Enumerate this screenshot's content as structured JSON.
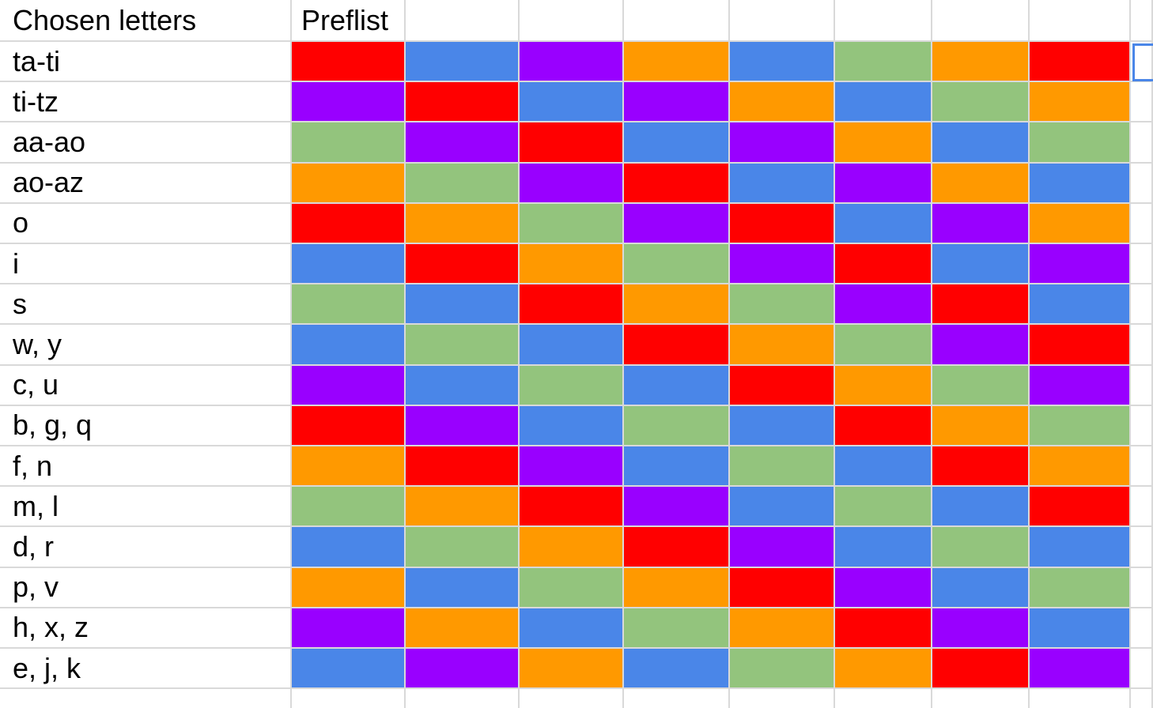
{
  "header": {
    "col_a": "Chosen letters",
    "col_b": "Preflist"
  },
  "colors": {
    "red": "#ff0000",
    "blue": "#4a86e8",
    "purple": "#9900ff",
    "orange": "#ff9900",
    "green": "#93c47d",
    "selection_border": "#4a86e8",
    "grid_line": "#d9d9d9"
  },
  "rows": [
    {
      "label": "ta-ti",
      "colors": [
        "red",
        "blue",
        "purple",
        "orange",
        "blue",
        "green",
        "orange",
        "red"
      ]
    },
    {
      "label": "ti-tz",
      "colors": [
        "purple",
        "red",
        "blue",
        "purple",
        "orange",
        "blue",
        "green",
        "orange"
      ]
    },
    {
      "label": "aa-ao",
      "colors": [
        "green",
        "purple",
        "red",
        "blue",
        "purple",
        "orange",
        "blue",
        "green"
      ]
    },
    {
      "label": "ao-az",
      "colors": [
        "orange",
        "green",
        "purple",
        "red",
        "blue",
        "purple",
        "orange",
        "blue"
      ]
    },
    {
      "label": "o",
      "colors": [
        "red",
        "orange",
        "green",
        "purple",
        "red",
        "blue",
        "purple",
        "orange"
      ]
    },
    {
      "label": "i",
      "colors": [
        "blue",
        "red",
        "orange",
        "green",
        "purple",
        "red",
        "blue",
        "purple"
      ]
    },
    {
      "label": "s",
      "colors": [
        "green",
        "blue",
        "red",
        "orange",
        "green",
        "purple",
        "red",
        "blue"
      ]
    },
    {
      "label": "w, y",
      "colors": [
        "blue",
        "green",
        "blue",
        "red",
        "orange",
        "green",
        "purple",
        "red"
      ]
    },
    {
      "label": "c, u",
      "colors": [
        "purple",
        "blue",
        "green",
        "blue",
        "red",
        "orange",
        "green",
        "purple"
      ]
    },
    {
      "label": "b, g, q",
      "colors": [
        "red",
        "purple",
        "blue",
        "green",
        "blue",
        "red",
        "orange",
        "green"
      ]
    },
    {
      "label": "f, n",
      "colors": [
        "orange",
        "red",
        "purple",
        "blue",
        "green",
        "blue",
        "red",
        "orange"
      ]
    },
    {
      "label": "m, l",
      "colors": [
        "green",
        "orange",
        "red",
        "purple",
        "blue",
        "green",
        "blue",
        "red"
      ]
    },
    {
      "label": "d, r",
      "colors": [
        "blue",
        "green",
        "orange",
        "red",
        "purple",
        "blue",
        "green",
        "blue"
      ]
    },
    {
      "label": "p, v",
      "colors": [
        "orange",
        "blue",
        "green",
        "orange",
        "red",
        "purple",
        "blue",
        "green"
      ]
    },
    {
      "label": "h, x, z",
      "colors": [
        "purple",
        "orange",
        "blue",
        "green",
        "orange",
        "red",
        "purple",
        "blue"
      ]
    },
    {
      "label": "e, j, k",
      "colors": [
        "blue",
        "purple",
        "orange",
        "blue",
        "green",
        "orange",
        "red",
        "purple"
      ]
    }
  ]
}
